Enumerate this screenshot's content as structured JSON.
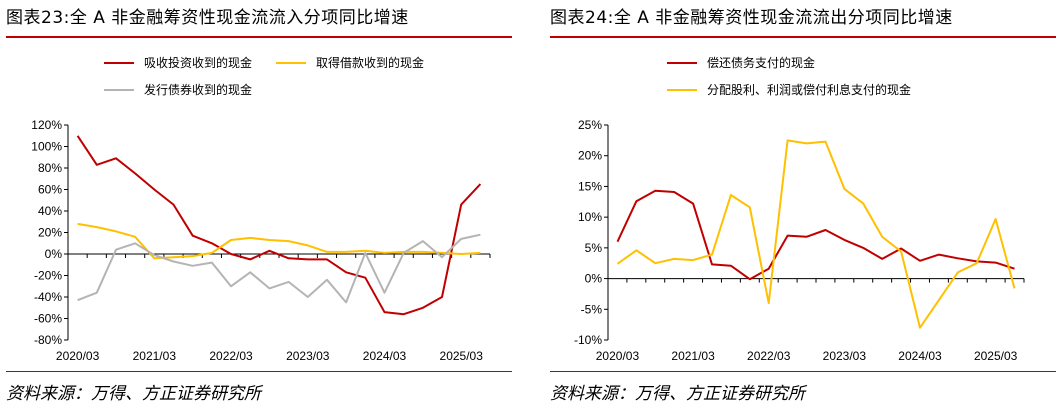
{
  "charts": [
    {
      "title": "图表23:全 A 非金融筹资性现金流流入分项同比增速",
      "source": "资料来源：万得、方正证券研究所"
    },
    {
      "title": "图表24:全 A 非金融筹资性现金流流出分项同比增速",
      "source": "资料来源：万得、方正证券研究所"
    }
  ],
  "chart_data": [
    {
      "type": "line",
      "title": "图表23:全 A 非金融筹资性现金流流入分项同比增速",
      "x_tick_labels": [
        "2020/03",
        "2021/03",
        "2022/03",
        "2023/03",
        "2024/03",
        "2025/03"
      ],
      "y_tick_labels": [
        "120%",
        "100%",
        "80%",
        "60%",
        "40%",
        "20%",
        "0%",
        "-20%",
        "-40%",
        "-60%",
        "-80%"
      ],
      "ylim": [
        -80,
        120
      ],
      "y_ticks": [
        120,
        100,
        80,
        60,
        40,
        20,
        0,
        -20,
        -40,
        -60,
        -80
      ],
      "x": [
        "2020/03",
        "2020/06",
        "2020/09",
        "2020/12",
        "2021/03",
        "2021/06",
        "2021/09",
        "2021/12",
        "2022/03",
        "2022/06",
        "2022/09",
        "2022/12",
        "2023/03",
        "2023/06",
        "2023/09",
        "2023/12",
        "2024/03",
        "2024/06",
        "2024/09",
        "2024/12",
        "2025/03",
        "2025/06"
      ],
      "legend_position": "top",
      "grid": false,
      "series": [
        {
          "name": "吸收投资收到的现金",
          "color": "#c00000",
          "values": [
            110,
            83,
            89,
            75,
            60,
            46,
            17,
            10,
            0,
            -5,
            3,
            -4,
            -5,
            -5,
            -17,
            -22,
            -54,
            -56,
            -50,
            -40,
            46,
            65
          ]
        },
        {
          "name": "取得借款收到的现金",
          "color": "#ffc000",
          "values": [
            28,
            25,
            21,
            16,
            -4,
            -3,
            -2,
            1,
            13,
            15,
            13,
            12,
            8,
            2,
            2,
            3,
            1,
            2,
            2,
            1,
            0,
            1
          ]
        },
        {
          "name": "发行债券收到的现金",
          "color": "#b4b4b4",
          "values": [
            -43,
            -36,
            4,
            10,
            -1,
            -7,
            -11,
            -8,
            -30,
            -17,
            -32,
            -26,
            -40,
            -24,
            -45,
            1,
            -36,
            1,
            12,
            -3,
            14,
            18
          ]
        }
      ]
    },
    {
      "type": "line",
      "title": "图表24:全 A 非金融筹资性现金流流出分项同比增速",
      "x_tick_labels": [
        "2020/03",
        "2021/03",
        "2022/03",
        "2023/03",
        "2024/03",
        "2025/03"
      ],
      "y_tick_labels": [
        "25%",
        "20%",
        "15%",
        "10%",
        "5%",
        "0%",
        "-5%",
        "-10%"
      ],
      "ylim": [
        -10,
        25
      ],
      "y_ticks": [
        25,
        20,
        15,
        10,
        5,
        0,
        -5,
        -10
      ],
      "x": [
        "2020/03",
        "2020/06",
        "2020/09",
        "2020/12",
        "2021/03",
        "2021/06",
        "2021/09",
        "2021/12",
        "2022/03",
        "2022/06",
        "2022/09",
        "2022/12",
        "2023/03",
        "2023/06",
        "2023/09",
        "2023/12",
        "2024/03",
        "2024/06",
        "2024/09",
        "2024/12",
        "2025/03",
        "2025/06"
      ],
      "legend_position": "top",
      "grid": false,
      "series": [
        {
          "name": "偿还债务支付的现金",
          "color": "#c00000",
          "values": [
            6.0,
            12.6,
            14.3,
            14.1,
            12.2,
            2.3,
            2.1,
            -0.1,
            1.6,
            7.0,
            6.8,
            7.9,
            6.3,
            5.0,
            3.2,
            4.9,
            2.9,
            3.9,
            3.3,
            2.8,
            2.6,
            1.6
          ]
        },
        {
          "name": "分配股利、利润或偿付利息支付的现金",
          "color": "#ffc000",
          "values": [
            2.4,
            4.6,
            2.5,
            3.2,
            3.0,
            3.9,
            13.6,
            11.6,
            -4.0,
            22.5,
            22.0,
            22.3,
            14.6,
            12.2,
            6.8,
            4.4,
            -8.0,
            -3.5,
            1.0,
            2.5,
            9.7,
            -1.6
          ]
        }
      ]
    }
  ]
}
